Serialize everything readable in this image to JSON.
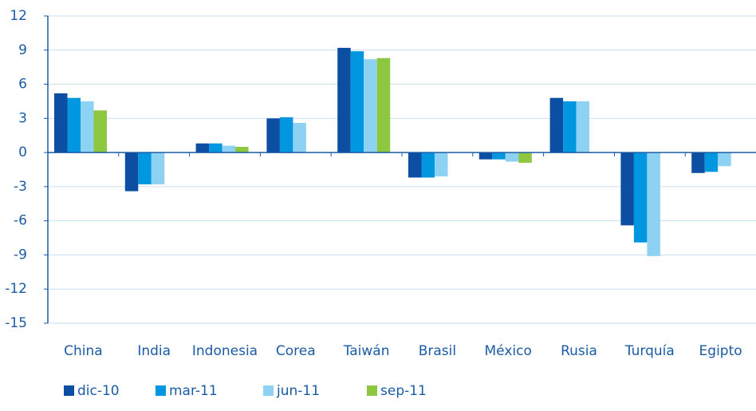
{
  "chart_data": {
    "type": "bar",
    "categories": [
      "China",
      "India",
      "Indonesia",
      "Corea",
      "Taiwán",
      "Brasil",
      "México",
      "Rusia",
      "Turquía",
      "Egipto"
    ],
    "series": [
      {
        "name": "dic-10",
        "color": "#0b4ea2",
        "values": [
          5.2,
          -3.4,
          0.8,
          3.0,
          9.2,
          -2.2,
          -0.6,
          4.8,
          -6.4,
          -1.8
        ]
      },
      {
        "name": "mar-11",
        "color": "#0096e0",
        "values": [
          4.8,
          -2.8,
          0.8,
          3.1,
          8.9,
          -2.2,
          -0.6,
          4.5,
          -7.9,
          -1.7
        ]
      },
      {
        "name": "jun-11",
        "color": "#8ed2f3",
        "values": [
          4.5,
          -2.8,
          0.6,
          2.6,
          8.2,
          -2.1,
          -0.8,
          4.5,
          -9.1,
          -1.2
        ]
      },
      {
        "name": "sep-11",
        "color": "#8dc63f",
        "values": [
          3.7,
          null,
          0.5,
          null,
          8.3,
          null,
          -0.9,
          null,
          null,
          null
        ]
      }
    ],
    "ylim": [
      -15,
      12
    ],
    "yticks": [
      -15,
      -12,
      -9,
      -6,
      -3,
      0,
      3,
      6,
      9,
      12
    ],
    "grid": true
  }
}
